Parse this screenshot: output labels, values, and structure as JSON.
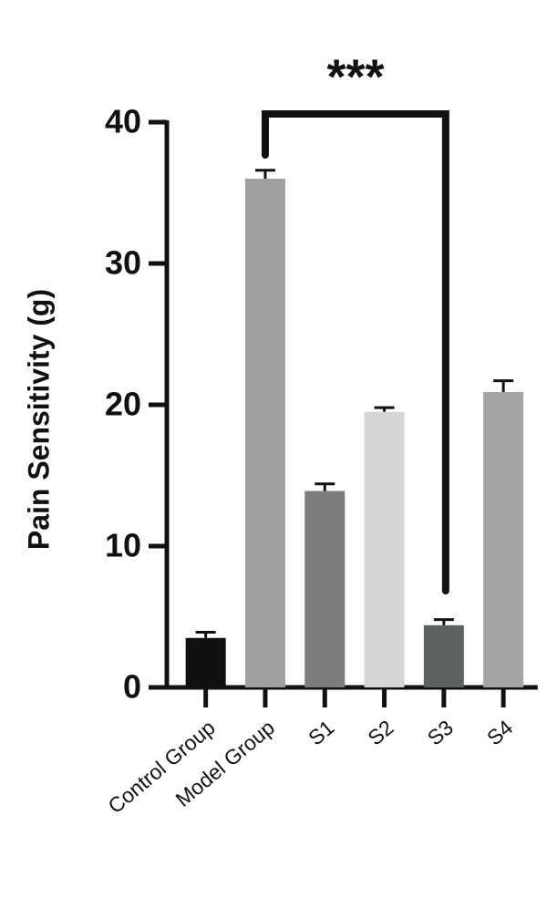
{
  "chart_data": {
    "type": "bar",
    "y_label": "Pain Sensitivity (g)",
    "categories": [
      "Control Group",
      "Model Group",
      "S1",
      "S2",
      "S3",
      "S4"
    ],
    "values": [
      3.5,
      36.0,
      13.9,
      19.5,
      4.4,
      20.9
    ],
    "errors": [
      0.4,
      0.6,
      0.5,
      0.3,
      0.4,
      0.8
    ],
    "colors": [
      "#111111",
      "#a0a0a0",
      "#7c7d7d",
      "#d4d6d6",
      "#5e6262",
      "#a3a4a4"
    ],
    "ylim": [
      0,
      40
    ],
    "yticks": [
      0,
      10,
      20,
      30,
      40
    ],
    "annotation": "***"
  }
}
